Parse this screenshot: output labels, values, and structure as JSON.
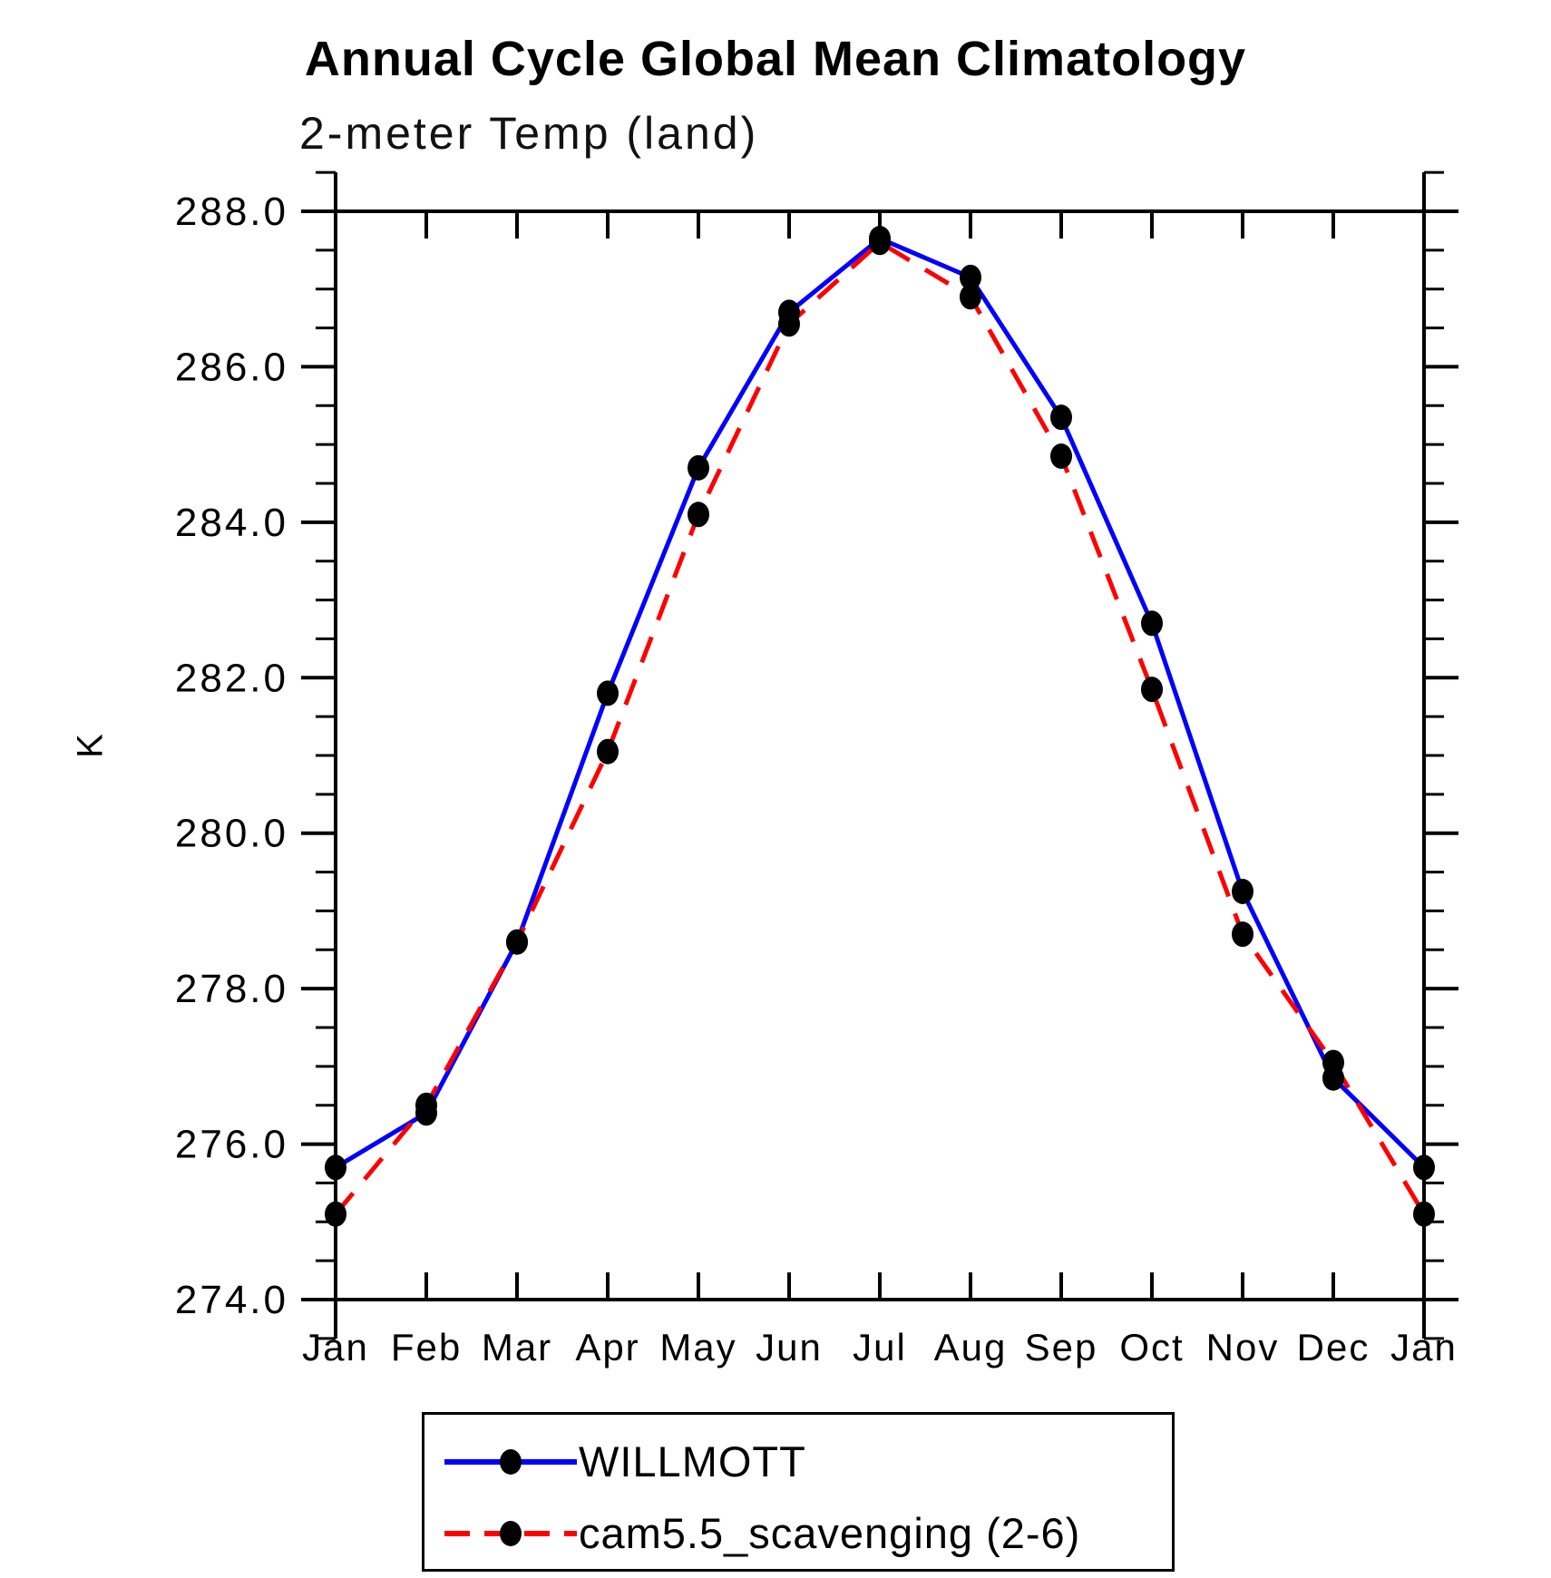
{
  "chart_data": {
    "type": "line",
    "title": "Annual Cycle Global Mean Climatology",
    "subtitle": "2-meter Temp (land)",
    "ylabel": "K",
    "xlabel": "",
    "ylim": [
      274.0,
      288.0
    ],
    "ytick_major_step": 2.0,
    "ytick_minor_step": 0.5,
    "ytick_label_format": "one_decimal",
    "grid": false,
    "legend_position": "bottom",
    "axis_color": "#000000",
    "marker_color": "#000000",
    "categories": [
      "Jan",
      "Feb",
      "Mar",
      "Apr",
      "May",
      "Jun",
      "Jul",
      "Aug",
      "Sep",
      "Oct",
      "Nov",
      "Dec",
      "Jan"
    ],
    "series": [
      {
        "name": "WILLMOTT",
        "color": "#0000ff",
        "line_style": "solid",
        "marker": "filled-circle",
        "values": [
          275.7,
          276.4,
          278.6,
          281.8,
          284.7,
          286.7,
          287.65,
          287.15,
          285.35,
          282.7,
          279.25,
          276.85,
          275.7
        ]
      },
      {
        "name": "cam5.5_scavenging (2-6)",
        "color": "#ff0000",
        "line_style": "dashed",
        "marker": "filled-circle",
        "values": [
          275.1,
          276.5,
          278.6,
          281.05,
          284.1,
          286.55,
          287.6,
          286.9,
          284.85,
          281.85,
          278.7,
          277.05,
          275.1
        ]
      }
    ]
  }
}
